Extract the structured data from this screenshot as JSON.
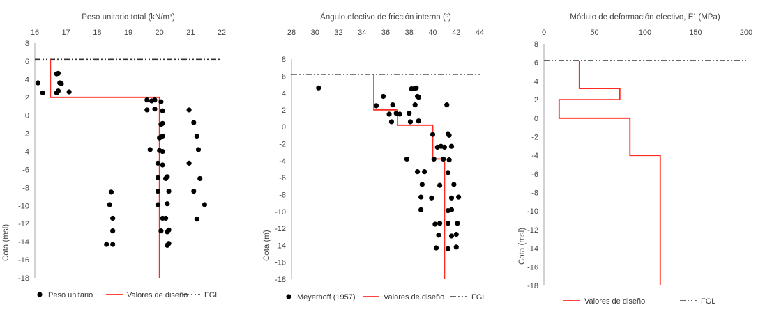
{
  "chart_data": [
    {
      "type": "scatter",
      "title": "Peso unitario total (kN/m³)",
      "xlabel": "Peso unitario total (kN/m³)",
      "ylabel": "Cota (msl)",
      "xlim": [
        16,
        22
      ],
      "ylim": [
        -18,
        8
      ],
      "xticks": [
        16,
        17,
        18,
        19,
        20,
        21,
        22
      ],
      "yticks": [
        8,
        6,
        4,
        2,
        0,
        -2,
        -4,
        -6,
        -8,
        -10,
        -12,
        -14,
        -16,
        -18
      ],
      "x_axis_position": "top",
      "grid": false,
      "legend": {
        "position": "bottom",
        "entries": [
          {
            "label": "Peso unitario",
            "style": "marker"
          },
          {
            "label": "Valores de diseño",
            "style": "red-line"
          },
          {
            "label": "FGL",
            "style": "dash-dot"
          }
        ]
      },
      "fgl": 6.2,
      "design_line": [
        [
          16.5,
          6.2
        ],
        [
          16.5,
          2.0
        ],
        [
          20.0,
          2.0
        ],
        [
          20.0,
          -18.0
        ]
      ],
      "points": [
        [
          16.7,
          4.6
        ],
        [
          16.75,
          4.65
        ],
        [
          16.8,
          3.6
        ],
        [
          16.85,
          3.5
        ],
        [
          16.1,
          3.6
        ],
        [
          16.25,
          2.5
        ],
        [
          16.7,
          2.5
        ],
        [
          16.75,
          2.7
        ],
        [
          17.1,
          2.6
        ],
        [
          19.6,
          1.7
        ],
        [
          19.75,
          1.6
        ],
        [
          19.85,
          1.7
        ],
        [
          20.05,
          1.5
        ],
        [
          19.6,
          0.6
        ],
        [
          19.85,
          0.7
        ],
        [
          20.1,
          0.5
        ],
        [
          20.1,
          -0.9
        ],
        [
          20.05,
          -1.0
        ],
        [
          20.05,
          -2.4
        ],
        [
          20.1,
          -2.3
        ],
        [
          20.0,
          -2.5
        ],
        [
          19.7,
          -3.8
        ],
        [
          20.0,
          -3.9
        ],
        [
          20.1,
          -4.0
        ],
        [
          19.95,
          -5.3
        ],
        [
          20.1,
          -5.5
        ],
        [
          19.95,
          -6.9
        ],
        [
          20.2,
          -7.0
        ],
        [
          20.25,
          -6.8
        ],
        [
          19.95,
          -8.4
        ],
        [
          20.3,
          -8.4
        ],
        [
          20.25,
          -9.8
        ],
        [
          19.95,
          -9.9
        ],
        [
          20.1,
          -11.4
        ],
        [
          20.2,
          -11.4
        ],
        [
          20.05,
          -12.8
        ],
        [
          20.3,
          -12.7
        ],
        [
          20.25,
          -12.9
        ],
        [
          20.3,
          -14.2
        ],
        [
          20.25,
          -14.4
        ],
        [
          18.45,
          -8.5
        ],
        [
          18.4,
          -9.9
        ],
        [
          18.5,
          -11.4
        ],
        [
          18.5,
          -12.8
        ],
        [
          18.3,
          -14.3
        ],
        [
          18.5,
          -14.3
        ],
        [
          20.95,
          0.6
        ],
        [
          21.1,
          -0.8
        ],
        [
          21.2,
          -2.3
        ],
        [
          21.25,
          -3.8
        ],
        [
          20.95,
          -5.3
        ],
        [
          21.3,
          -7.0
        ],
        [
          21.1,
          -8.4
        ],
        [
          21.45,
          -9.9
        ],
        [
          21.2,
          -11.5
        ]
      ]
    },
    {
      "type": "scatter",
      "title": "Ángulo efectivo de fricción interna (º)",
      "xlabel": "Ángulo efectivo de fricción interna (º)",
      "ylabel": "Cota (m)",
      "xlim": [
        28,
        44
      ],
      "ylim": [
        -18,
        8
      ],
      "xticks": [
        28,
        30,
        32,
        34,
        36,
        38,
        40,
        42,
        44
      ],
      "yticks": [
        8,
        6,
        4,
        2,
        0,
        -2,
        -4,
        -6,
        -8,
        -10,
        -12,
        -14,
        -16,
        -18
      ],
      "x_axis_position": "top",
      "grid": false,
      "legend": {
        "position": "bottom",
        "entries": [
          {
            "label": "Meyerhoff (1957)",
            "style": "marker"
          },
          {
            "label": "Valores de diseño",
            "style": "red-line"
          },
          {
            "label": "FGL",
            "style": "dash-dot"
          }
        ]
      },
      "fgl": 6.2,
      "design_line": [
        [
          35.0,
          6.2
        ],
        [
          35.0,
          2.0
        ],
        [
          37.0,
          2.0
        ],
        [
          37.0,
          0.2
        ],
        [
          40.0,
          0.2
        ],
        [
          40.0,
          -3.8
        ],
        [
          41.0,
          -3.8
        ],
        [
          41.0,
          -18.0
        ]
      ],
      "points": [
        [
          30.3,
          4.6
        ],
        [
          35.2,
          2.5
        ],
        [
          35.8,
          3.6
        ],
        [
          38.2,
          4.5
        ],
        [
          38.4,
          4.5
        ],
        [
          38.6,
          4.6
        ],
        [
          38.7,
          3.6
        ],
        [
          38.8,
          3.5
        ],
        [
          36.6,
          2.6
        ],
        [
          38.5,
          2.6
        ],
        [
          36.3,
          1.5
        ],
        [
          36.9,
          1.6
        ],
        [
          37.2,
          1.5
        ],
        [
          38.0,
          1.6
        ],
        [
          36.5,
          0.6
        ],
        [
          38.1,
          0.6
        ],
        [
          38.8,
          0.7
        ],
        [
          41.2,
          2.6
        ],
        [
          40.0,
          -0.9
        ],
        [
          41.3,
          -0.8
        ],
        [
          41.4,
          -1.0
        ],
        [
          40.4,
          -2.4
        ],
        [
          40.7,
          -2.3
        ],
        [
          41.0,
          -2.4
        ],
        [
          41.6,
          -2.3
        ],
        [
          37.8,
          -3.8
        ],
        [
          40.1,
          -3.8
        ],
        [
          40.9,
          -3.8
        ],
        [
          41.4,
          -3.9
        ],
        [
          38.7,
          -5.3
        ],
        [
          39.3,
          -5.3
        ],
        [
          41.3,
          -5.4
        ],
        [
          39.1,
          -6.8
        ],
        [
          40.6,
          -6.9
        ],
        [
          41.8,
          -6.8
        ],
        [
          39.0,
          -8.3
        ],
        [
          39.9,
          -8.4
        ],
        [
          41.6,
          -8.4
        ],
        [
          42.2,
          -8.3
        ],
        [
          39.0,
          -9.8
        ],
        [
          41.3,
          -9.9
        ],
        [
          41.6,
          -9.8
        ],
        [
          40.2,
          -11.5
        ],
        [
          40.6,
          -11.4
        ],
        [
          41.3,
          -11.4
        ],
        [
          42.1,
          -11.4
        ],
        [
          40.5,
          -12.8
        ],
        [
          41.6,
          -12.9
        ],
        [
          42.0,
          -12.7
        ],
        [
          40.3,
          -14.3
        ],
        [
          41.3,
          -14.4
        ],
        [
          42.0,
          -14.2
        ]
      ]
    },
    {
      "type": "line",
      "title": "Módulo de deformación efectivo, E´ (MPa)",
      "xlabel": "Módulo de deformación efectivo, E´ (MPa)",
      "ylabel": "Cota (msl)",
      "xlim": [
        0,
        200
      ],
      "ylim": [
        -18,
        8
      ],
      "xticks": [
        0,
        50,
        100,
        150,
        200
      ],
      "yticks": [
        8,
        6,
        4,
        2,
        0,
        -2,
        -4,
        -6,
        -8,
        -10,
        -12,
        -14,
        -16,
        -18
      ],
      "x_axis_position": "top",
      "grid": false,
      "legend": {
        "position": "bottom",
        "entries": [
          {
            "label": "Valores de diseño",
            "style": "red-line"
          },
          {
            "label": "FGL",
            "style": "dash-dot"
          }
        ]
      },
      "fgl": 6.2,
      "design_line": [
        [
          35,
          6.2
        ],
        [
          35,
          3.2
        ],
        [
          75,
          3.2
        ],
        [
          75,
          2.0
        ],
        [
          15,
          2.0
        ],
        [
          15,
          0.0
        ],
        [
          85,
          0.0
        ],
        [
          85,
          -4.0
        ],
        [
          115,
          -4.0
        ],
        [
          115,
          -18.0
        ]
      ],
      "points": []
    }
  ],
  "colors": {
    "design_line": "#ff2a1f",
    "markers": "#000000",
    "fgl": "#333333",
    "axis": "#a6a6a6"
  }
}
